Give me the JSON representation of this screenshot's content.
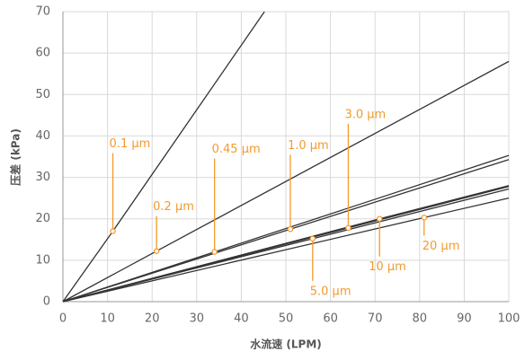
{
  "chart_data": {
    "type": "line",
    "xlabel": "水流速 (LPM)",
    "ylabel": "压差 (kPa)",
    "xlim": [
      0,
      100
    ],
    "xticks": [
      0,
      10,
      20,
      30,
      40,
      50,
      60,
      70,
      80,
      90,
      100
    ],
    "ylim": [
      0,
      70
    ],
    "yticks": [
      0,
      10,
      20,
      30,
      40,
      50,
      60,
      70
    ],
    "grid": true,
    "line_color": "#333333",
    "label_color": "#f39a2e",
    "series": [
      {
        "name": "0.1 µm",
        "x": [
          0,
          11.2,
          45.2
        ],
        "values": [
          0,
          17,
          70
        ]
      },
      {
        "name": "0.2 µm",
        "x": [
          0,
          21,
          100
        ],
        "values": [
          0,
          12.2,
          58
        ]
      },
      {
        "name": "0.45 µm",
        "x": [
          0,
          34,
          100
        ],
        "values": [
          0,
          12,
          35.3
        ]
      },
      {
        "name": "1.0 µm",
        "x": [
          0,
          51,
          100
        ],
        "values": [
          0,
          17.5,
          34.3
        ]
      },
      {
        "name": "3.0 µm",
        "x": [
          0,
          64,
          100
        ],
        "values": [
          0,
          17.8,
          27.8
        ]
      },
      {
        "name": "5.0 µm",
        "x": [
          0,
          56,
          100
        ],
        "values": [
          0,
          15.2,
          27.2
        ]
      },
      {
        "name": "10 µm",
        "x": [
          0,
          71,
          100
        ],
        "values": [
          0,
          20,
          28
        ]
      },
      {
        "name": "20 µm",
        "x": [
          0,
          81,
          100
        ],
        "values": [
          0,
          20.3,
          25
        ]
      }
    ]
  }
}
